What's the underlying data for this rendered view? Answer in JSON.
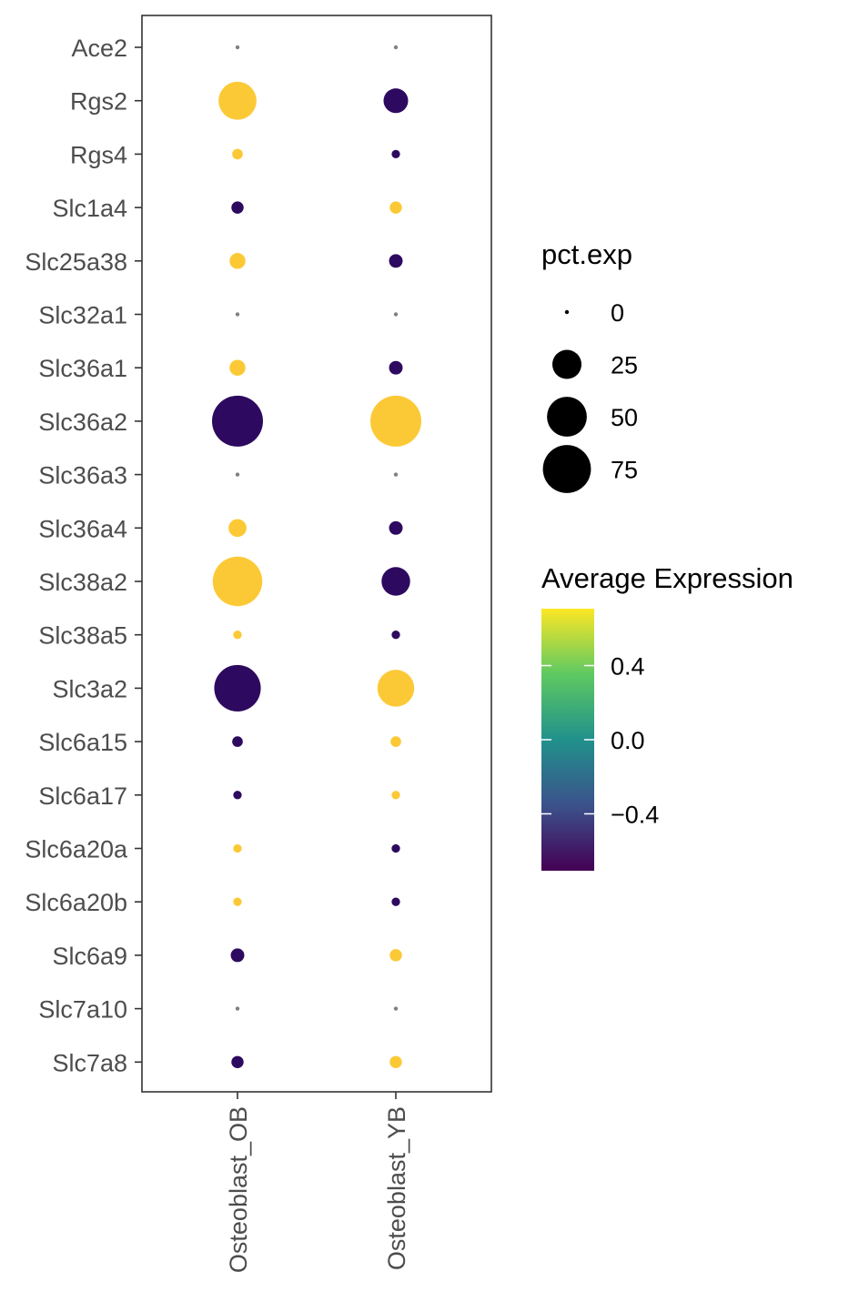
{
  "chart_data": {
    "type": "dot",
    "xlabel": "",
    "ylabel": "",
    "categories": [
      "Osteoblast_OB",
      "Osteoblast_YB"
    ],
    "genes": [
      "Ace2",
      "Rgs2",
      "Rgs4",
      "Slc1a4",
      "Slc25a38",
      "Slc32a1",
      "Slc36a1",
      "Slc36a2",
      "Slc36a3",
      "Slc36a4",
      "Slc38a2",
      "Slc38a5",
      "Slc3a2",
      "Slc6a15",
      "Slc6a17",
      "Slc6a20a",
      "Slc6a20b",
      "Slc6a9",
      "Slc7a10",
      "Slc7a8"
    ],
    "pct_exp": [
      [
        0,
        0
      ],
      [
        45,
        17
      ],
      [
        2,
        1
      ],
      [
        3,
        3
      ],
      [
        6,
        4
      ],
      [
        0,
        0
      ],
      [
        6,
        4
      ],
      [
        85,
        85
      ],
      [
        0,
        0
      ],
      [
        8,
        4
      ],
      [
        80,
        24
      ],
      [
        1,
        1
      ],
      [
        70,
        42
      ],
      [
        2,
        2
      ],
      [
        1,
        1
      ],
      [
        1,
        1
      ],
      [
        1,
        1
      ],
      [
        4,
        3
      ],
      [
        0,
        0
      ],
      [
        3,
        3
      ]
    ],
    "avg_exp": [
      [
        null,
        null
      ],
      [
        0.707,
        -0.707
      ],
      [
        0.707,
        -0.707
      ],
      [
        -0.707,
        0.707
      ],
      [
        0.707,
        -0.707
      ],
      [
        null,
        null
      ],
      [
        0.707,
        -0.707
      ],
      [
        -0.707,
        0.707
      ],
      [
        null,
        null
      ],
      [
        0.707,
        -0.707
      ],
      [
        0.707,
        -0.707
      ],
      [
        0.707,
        -0.707
      ],
      [
        -0.707,
        0.707
      ],
      [
        -0.707,
        0.707
      ],
      [
        -0.707,
        0.707
      ],
      [
        0.707,
        -0.707
      ],
      [
        0.707,
        -0.707
      ],
      [
        -0.707,
        0.707
      ],
      [
        null,
        null
      ],
      [
        -0.707,
        0.707
      ]
    ],
    "size_legend": {
      "title": "pct.exp",
      "values": [
        0,
        25,
        50,
        75
      ],
      "labels": [
        "0",
        "25",
        "50",
        "75"
      ]
    },
    "color_legend": {
      "title": "Average Expression",
      "range": [
        -0.707,
        0.707
      ],
      "ticks": [
        0.4,
        0.0,
        -0.4
      ],
      "tick_labels": [
        "0.4",
        "0.0",
        "−0.4"
      ],
      "colors": [
        "#440154",
        "#3b528b",
        "#21918c",
        "#5ec962",
        "#fde725"
      ],
      "point_colors": {
        "low": "#2d0a5f",
        "high": "#fcc936",
        "zero_pct": "#808080"
      }
    }
  }
}
